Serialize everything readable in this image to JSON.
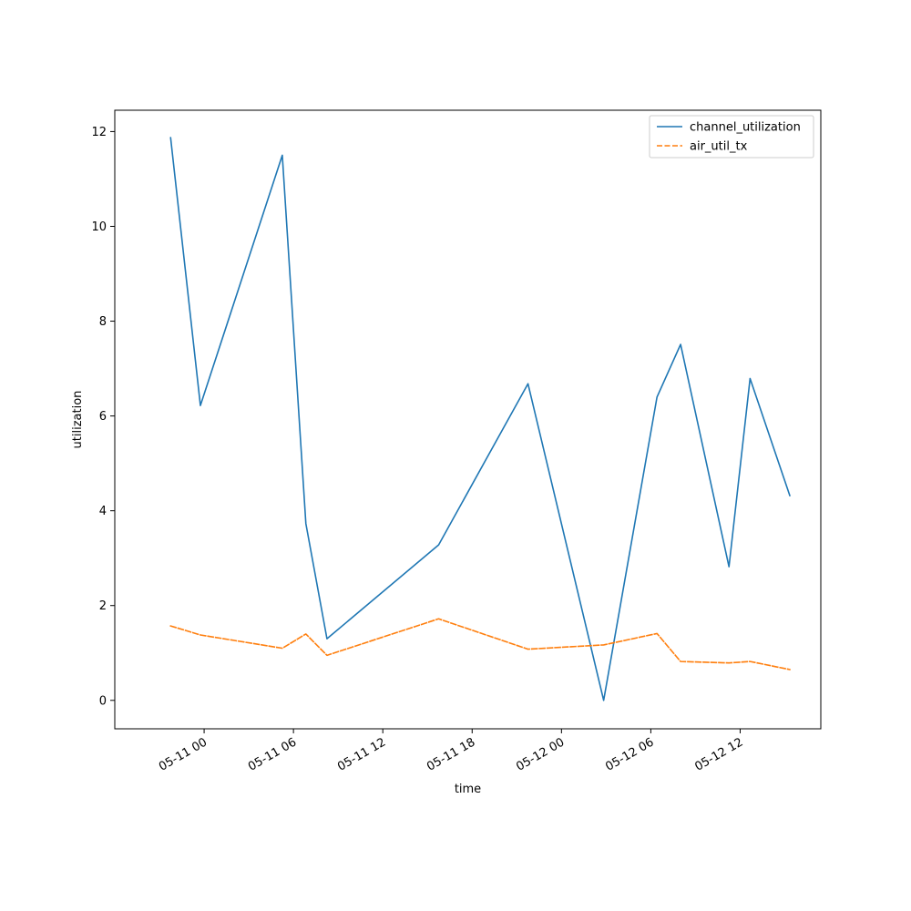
{
  "chart_data": {
    "type": "line",
    "title": "",
    "xlabel": "time",
    "ylabel": "utilization",
    "x_ticks": [
      "05-11 00",
      "05-11 06",
      "05-11 12",
      "05-11 18",
      "05-12 00",
      "05-12 06",
      "05-12 12"
    ],
    "x_tick_times": [
      "2024-05-11T00:00",
      "2024-05-11T06:00",
      "2024-05-11T12:00",
      "2024-05-11T18:00",
      "2024-05-12T00:00",
      "2024-05-12T06:00",
      "2024-05-12T12:00"
    ],
    "xlim": [
      "2024-05-10T18:00",
      "2024-05-12T17:25"
    ],
    "y_ticks": [
      0,
      2,
      4,
      6,
      8,
      10,
      12
    ],
    "ylim": [
      -0.6,
      12.45
    ],
    "grid": false,
    "legend_position": "top-right",
    "x": [
      "2024-05-10T21:45",
      "2024-05-10T23:45",
      "2024-05-11T05:15",
      "2024-05-11T06:50",
      "2024-05-11T08:15",
      "2024-05-11T15:45",
      "2024-05-11T21:45",
      "2024-05-12T02:50",
      "2024-05-12T06:25",
      "2024-05-12T08:00",
      "2024-05-12T11:15",
      "2024-05-12T12:40",
      "2024-05-12T15:20"
    ],
    "series": [
      {
        "name": "channel_utilization",
        "color": "#1f77b4",
        "style": "solid",
        "values": [
          11.87,
          6.22,
          11.5,
          3.73,
          1.3,
          3.28,
          6.68,
          0.0,
          6.4,
          7.51,
          2.82,
          6.79,
          4.32
        ]
      },
      {
        "name": "air_util_tx",
        "color": "#ff7f0e",
        "style": "dashed",
        "values": [
          1.57,
          1.38,
          1.1,
          1.4,
          0.95,
          1.72,
          1.08,
          1.17,
          1.41,
          0.82,
          0.79,
          0.82,
          0.65
        ]
      }
    ]
  }
}
